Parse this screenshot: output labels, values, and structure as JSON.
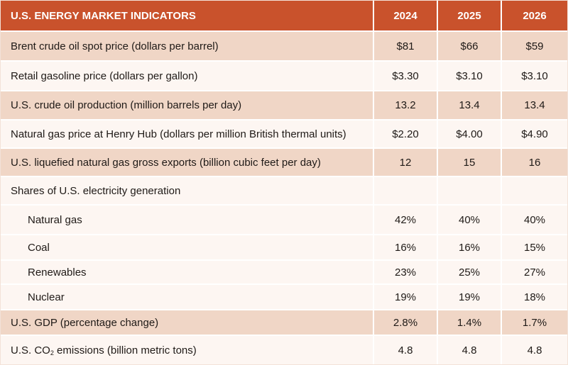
{
  "header": {
    "title": "U.S. ENERGY MARKET INDICATORS",
    "years": [
      "2024",
      "2025",
      "2026"
    ]
  },
  "rows": [
    {
      "label": "Brent crude oil spot price (dollars per barrel)",
      "values": [
        "$81",
        "$66",
        "$59"
      ]
    },
    {
      "label": "Retail gasoline price (dollars per gallon)",
      "values": [
        "$3.30",
        "$3.10",
        "$3.10"
      ]
    },
    {
      "label": "U.S. crude oil production (million barrels per day)",
      "values": [
        "13.2",
        "13.4",
        "13.4"
      ]
    },
    {
      "label": "Natural gas price at Henry Hub (dollars per million British thermal units)",
      "values": [
        "$2.20",
        "$4.00",
        "$4.90"
      ]
    },
    {
      "label": "U.S. liquefied natural gas gross exports (billion cubic feet per day)",
      "values": [
        "12",
        "15",
        "16"
      ]
    }
  ],
  "electricity": {
    "heading": "Shares of U.S. electricity generation",
    "items": [
      {
        "label": "Natural gas",
        "values": [
          "42%",
          "40%",
          "40%"
        ]
      },
      {
        "label": "Coal",
        "values": [
          "16%",
          "16%",
          "15%"
        ]
      },
      {
        "label": "Renewables",
        "values": [
          "23%",
          "25%",
          "27%"
        ]
      },
      {
        "label": "Nuclear",
        "values": [
          "19%",
          "19%",
          "18%"
        ]
      }
    ]
  },
  "gdp": {
    "label": "U.S. GDP (percentage change)",
    "values": [
      "2.8%",
      "1.4%",
      "1.7%"
    ]
  },
  "co2": {
    "label_prefix": "U.S. CO",
    "label_sub": "2",
    "label_suffix": " emissions (billion metric tons)",
    "values": [
      "4.8",
      "4.8",
      "4.8"
    ]
  },
  "colors": {
    "header": "#c9522c",
    "shaded": "#f0d6c6",
    "light": "#fdf6f2"
  }
}
